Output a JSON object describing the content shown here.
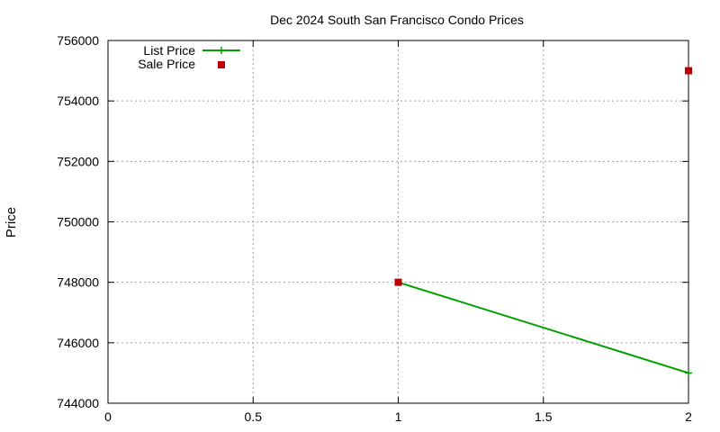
{
  "chart_data": {
    "type": "line",
    "title": "Dec 2024 South San Francisco Condo Prices",
    "xlabel": "",
    "ylabel": "Price",
    "xlim": [
      0,
      2
    ],
    "ylim": [
      744000,
      756000
    ],
    "x_ticks": [
      0,
      0.5,
      1,
      1.5,
      2
    ],
    "x_tick_labels": [
      "0",
      "0.5",
      "1",
      "1.5",
      "2"
    ],
    "y_ticks": [
      744000,
      746000,
      748000,
      750000,
      752000,
      754000,
      756000
    ],
    "y_tick_labels": [
      "744000",
      "746000",
      "748000",
      "750000",
      "752000",
      "754000",
      "756000"
    ],
    "grid": true,
    "legend_position": "top-left",
    "series": [
      {
        "name": "List Price",
        "style": "lines+points",
        "color": "#00a000",
        "marker": "plus",
        "x": [
          1,
          2
        ],
        "y": [
          748000,
          745000
        ]
      },
      {
        "name": "Sale Price",
        "style": "points",
        "color": "#c00000",
        "marker": "square",
        "x": [
          1,
          2
        ],
        "y": [
          748000,
          755000
        ]
      }
    ]
  }
}
